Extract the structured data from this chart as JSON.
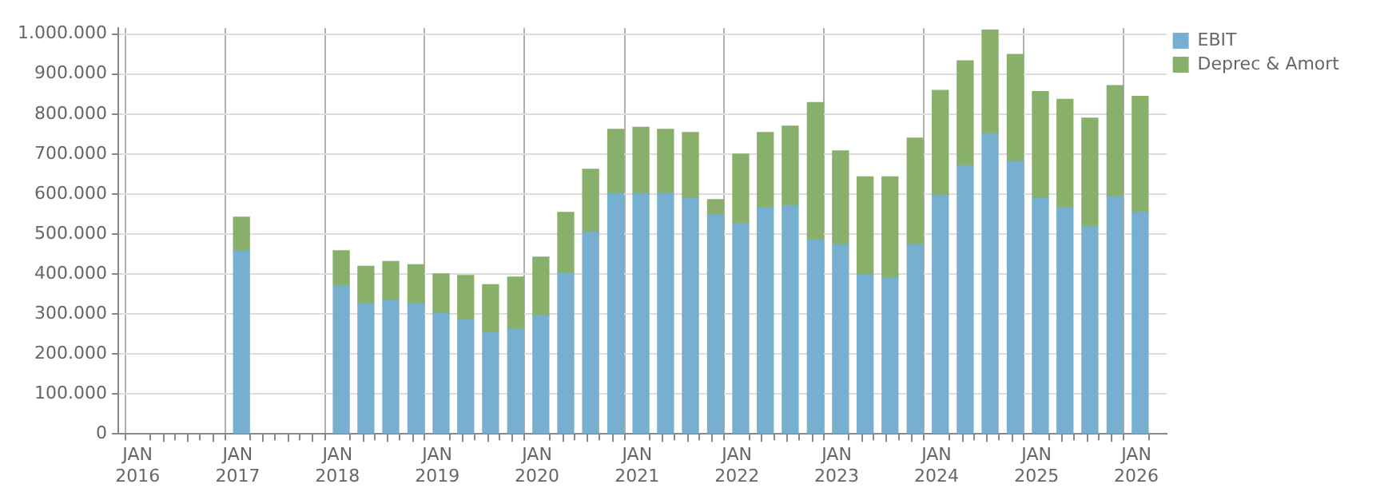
{
  "chart_data": {
    "type": "bar",
    "stacked": true,
    "x": [
      "2017-01-15",
      "2018-01-15",
      "2018-04-15",
      "2018-07-15",
      "2018-10-15",
      "2019-01-15",
      "2019-04-15",
      "2019-07-15",
      "2019-10-15",
      "2020-01-15",
      "2020-04-15",
      "2020-07-15",
      "2020-10-15",
      "2021-01-15",
      "2021-04-15",
      "2021-07-15",
      "2021-10-15",
      "2022-01-15",
      "2022-04-15",
      "2022-07-15",
      "2022-10-15",
      "2023-01-15",
      "2023-04-15",
      "2023-07-15",
      "2023-10-15",
      "2024-01-15",
      "2024-04-15",
      "2024-07-15",
      "2024-10-15",
      "2025-01-15",
      "2025-04-15",
      "2025-07-15",
      "2025-10-15",
      "2026-01-15"
    ],
    "series": [
      {
        "name": "EBIT",
        "color": "#77afd0",
        "values": [
          458000,
          370000,
          326000,
          334000,
          326000,
          301000,
          285000,
          254000,
          262000,
          296000,
          401000,
          504000,
          602000,
          602000,
          602000,
          589000,
          548000,
          527000,
          566000,
          571000,
          486000,
          474000,
          397000,
          389000,
          474000,
          596000,
          671000,
          751000,
          681000,
          589000,
          566000,
          519000,
          594000,
          555000
        ]
      },
      {
        "name": "Deprec & Amort",
        "color": "#88b06a",
        "values": [
          84000,
          88000,
          93000,
          97000,
          97000,
          99000,
          111000,
          119000,
          130000,
          146000,
          153000,
          158000,
          160000,
          165000,
          160000,
          165000,
          38000,
          173000,
          188000,
          199000,
          343000,
          234000,
          246000,
          254000,
          266000,
          263000,
          262000,
          259000,
          268000,
          267000,
          271000,
          271000,
          277000,
          289000
        ]
      }
    ],
    "xlim": [
      "2015-12-08",
      "2026-03-05"
    ],
    "xticks": [
      {
        "value": "2016-01",
        "label": "JAN 2016"
      },
      {
        "value": "2016-04",
        "label": null
      },
      {
        "value": "2016-07",
        "label": null
      },
      {
        "value": "2016-10",
        "label": null
      },
      {
        "value": "2017-01",
        "label": "JAN 2017"
      },
      {
        "value": "2017-04",
        "label": null
      },
      {
        "value": "2017-07",
        "label": null
      },
      {
        "value": "2017-10",
        "label": null
      },
      {
        "value": "2018-01",
        "label": "JAN 2018"
      },
      {
        "value": "2018-04",
        "label": null
      },
      {
        "value": "2018-07",
        "label": null
      },
      {
        "value": "2018-10",
        "label": null
      },
      {
        "value": "2019-01",
        "label": "JAN 2019"
      },
      {
        "value": "2019-04",
        "label": null
      },
      {
        "value": "2019-07",
        "label": null
      },
      {
        "value": "2019-10",
        "label": null
      },
      {
        "value": "2020-01",
        "label": "JAN 2020"
      },
      {
        "value": "2020-04",
        "label": null
      },
      {
        "value": "2020-07",
        "label": null
      },
      {
        "value": "2020-10",
        "label": null
      },
      {
        "value": "2021-01",
        "label": "JAN 2021"
      },
      {
        "value": "2021-04",
        "label": null
      },
      {
        "value": "2021-07",
        "label": null
      },
      {
        "value": "2021-10",
        "label": null
      },
      {
        "value": "2022-01",
        "label": "JAN 2022"
      },
      {
        "value": "2022-04",
        "label": null
      },
      {
        "value": "2022-07",
        "label": null
      },
      {
        "value": "2022-10",
        "label": null
      },
      {
        "value": "2023-01",
        "label": "JAN 2023"
      },
      {
        "value": "2023-04",
        "label": null
      },
      {
        "value": "2023-07",
        "label": null
      },
      {
        "value": "2023-10",
        "label": null
      },
      {
        "value": "2024-01",
        "label": "JAN 2024"
      },
      {
        "value": "2024-04",
        "label": null
      },
      {
        "value": "2024-07",
        "label": null
      },
      {
        "value": "2024-10",
        "label": null
      },
      {
        "value": "2025-01",
        "label": "JAN 2025"
      },
      {
        "value": "2025-04",
        "label": null
      },
      {
        "value": "2025-07",
        "label": null
      },
      {
        "value": "2025-10",
        "label": null
      },
      {
        "value": "2026-01",
        "label": "JAN 2026"
      }
    ],
    "ylim": [
      0,
      1015000
    ],
    "yticks": [
      0,
      {
        "value": 100000,
        "label": "100.000"
      },
      {
        "value": 200000,
        "label": "200.000"
      },
      {
        "value": 300000,
        "label": "300.000"
      },
      {
        "value": 400000,
        "label": "400.000"
      },
      {
        "value": 500000,
        "label": "500.000"
      },
      {
        "value": 600000,
        "label": "600.000"
      },
      {
        "value": 700000,
        "label": "700.000"
      },
      {
        "value": 800000,
        "label": "800.000"
      },
      {
        "value": 900000,
        "label": "900.000"
      },
      {
        "value": 1000000,
        "label": "1.000.000"
      }
    ],
    "grid": true,
    "legend": "top right"
  }
}
